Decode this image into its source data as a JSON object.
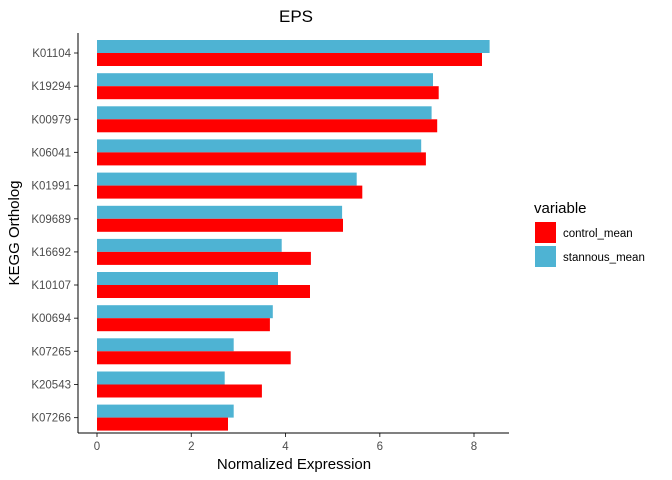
{
  "chart_data": {
    "type": "bar",
    "orientation": "horizontal",
    "title": "EPS",
    "xlabel": "Normalized Expression",
    "ylabel": "KEGG Ortholog",
    "xlim": [
      0,
      8.7
    ],
    "xticks": [
      0,
      2,
      4,
      6,
      8
    ],
    "grid": false,
    "legend": {
      "title": "variable",
      "position": "right"
    },
    "categories": [
      "K01104",
      "K19294",
      "K00979",
      "K06041",
      "K01991",
      "K09689",
      "K16692",
      "K10107",
      "K00694",
      "K07265",
      "K20543",
      "K07266"
    ],
    "series": [
      {
        "name": "stannous_mean",
        "color": "#4eb3d3",
        "values": [
          8.33,
          7.13,
          7.1,
          6.88,
          5.51,
          5.2,
          3.92,
          3.84,
          3.73,
          2.9,
          2.71,
          2.9
        ]
      },
      {
        "name": "control_mean",
        "color": "#ff0000",
        "values": [
          8.17,
          7.25,
          7.22,
          6.98,
          5.63,
          5.22,
          4.54,
          4.52,
          3.67,
          4.11,
          3.5,
          2.78
        ]
      }
    ]
  }
}
